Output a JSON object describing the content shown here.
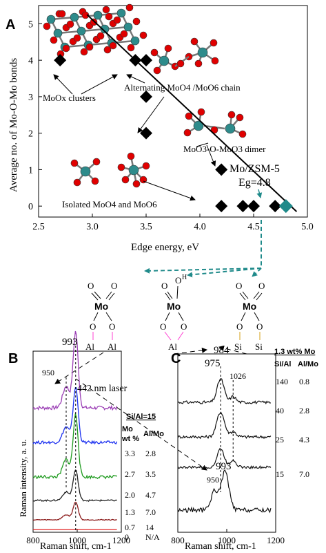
{
  "colors": {
    "teal": "#1f8a8a",
    "mo_atom": "#2e8b8b",
    "oxygen": "#e00000",
    "al": "#ff3fd2",
    "si": "#d4a017",
    "marker": "#000000"
  },
  "panel_labels": [
    "A",
    "B",
    "C"
  ],
  "chart_data": [
    {
      "type": "scatter",
      "panel": "A",
      "xlabel": "Edge energy, eV",
      "ylabel": "Average no. of Mo-O-Mo bonds",
      "xlim": [
        2.5,
        5.0
      ],
      "ylim": [
        -0.3,
        5.5
      ],
      "xticks": [
        "2.5",
        "3.0",
        "3.5",
        "4.0",
        "4.5",
        "5.0"
      ],
      "yticks": [
        "0",
        "1",
        "2",
        "3",
        "4",
        "5"
      ],
      "points": [
        {
          "x": 2.7,
          "y": 4
        },
        {
          "x": 3.4,
          "y": 4
        },
        {
          "x": 3.5,
          "y": 4
        },
        {
          "x": 3.5,
          "y": 3
        },
        {
          "x": 3.5,
          "y": 2
        },
        {
          "x": 4.2,
          "y": 1
        },
        {
          "x": 4.2,
          "y": 0
        },
        {
          "x": 4.4,
          "y": 0
        },
        {
          "x": 4.5,
          "y": 0
        },
        {
          "x": 4.7,
          "y": 0
        }
      ],
      "highlight": {
        "x": 4.8,
        "y": 0,
        "label": "Mo/ZSM-5",
        "sublabel": "Eg=4.8"
      },
      "fit_line": {
        "x1": 2.95,
        "y1": 5.25,
        "x2": 4.9,
        "y2": -0.15
      },
      "annotations": {
        "clusters": "MoOx clusters",
        "chain": "Alternating MoO4 /MoO6 chain",
        "dimer": "MoO3-O-MoO3 dimer",
        "isolated": "Isolated MoO4 and MoO6"
      }
    },
    {
      "type": "line",
      "panel": "B",
      "xlabel": "Raman shift, cm-1",
      "ylabel": "Raman intensity, a. u.",
      "xlim": [
        800,
        1200
      ],
      "xticks": [
        "800",
        "1000",
        "1200"
      ],
      "peak_labels": {
        "main": "993",
        "shoulder": "950"
      },
      "laser": "442 nm laser",
      "table_title": "Si/Al=15",
      "col_mo": "Mo wt %",
      "col_almo": "Al/Mo",
      "series": [
        {
          "mo": "3.3",
          "almo": "2.8",
          "color": "#9b3fb5",
          "amp": 1.0
        },
        {
          "mo": "2.7",
          "almo": "3.5",
          "color": "#1a2ff0",
          "amp": 0.85
        },
        {
          "mo": "2.0",
          "almo": "4.7",
          "color": "#1e9a1e",
          "amp": 0.9
        },
        {
          "mo": "1.3",
          "almo": "7.0",
          "color": "#222222",
          "amp": 0.45
        },
        {
          "mo": "0.7",
          "almo": "14",
          "color": "#8b1a1a",
          "amp": 0.3
        },
        {
          "mo": "0",
          "almo": "N/A",
          "color": "#e02020",
          "amp": 0.0
        }
      ]
    },
    {
      "type": "line",
      "panel": "C",
      "xlabel": "Raman shift, cm-1",
      "xlim": [
        800,
        1200
      ],
      "xticks": [
        "800",
        "1000",
        "1200"
      ],
      "peak_labels": {
        "p984": "984",
        "p975": "975",
        "p1026": "1026",
        "p993": "993",
        "p950": "950"
      },
      "table_title": "1.3 wt% Mo",
      "col_sial": "Si/Al",
      "col_almo": "Al/Mo",
      "series": [
        {
          "sial": "140",
          "almo": "0.8"
        },
        {
          "sial": "40",
          "almo": "2.8"
        },
        {
          "sial": "25",
          "almo": "4.3"
        },
        {
          "sial": "15",
          "almo": "7.0"
        }
      ]
    }
  ],
  "structures": {
    "mo": "Mo",
    "o": "O",
    "h": "H",
    "al": "Al",
    "si": "Si"
  }
}
